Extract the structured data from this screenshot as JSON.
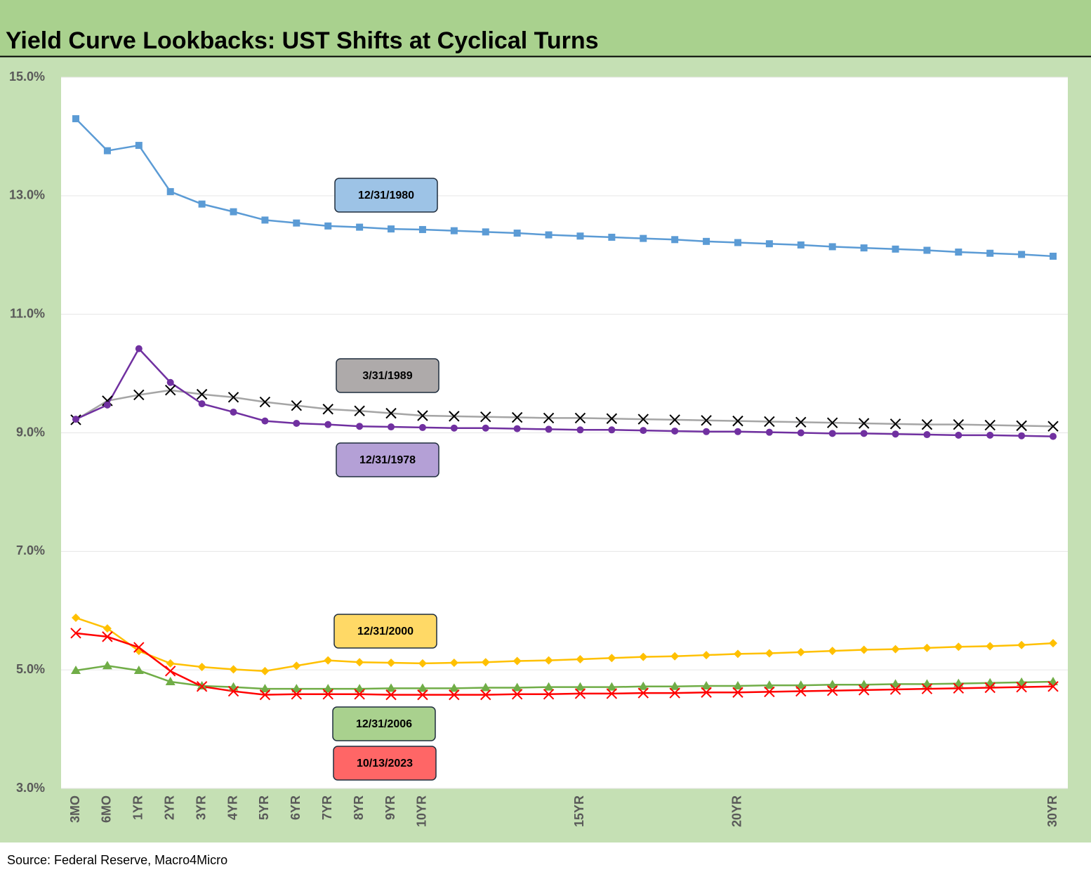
{
  "chart_data": {
    "type": "line",
    "title": "Yield Curve Lookbacks: UST Shifts at Cyclical Turns",
    "source": "Source: Federal Reserve, Macro4Micro",
    "categories": [
      "3MO",
      "6MO",
      "1YR",
      "2YR",
      "3YR",
      "4YR",
      "5YR",
      "6YR",
      "7YR",
      "8YR",
      "9YR",
      "10YR",
      null,
      null,
      null,
      null,
      "15YR",
      null,
      null,
      null,
      null,
      "20YR",
      null,
      null,
      null,
      null,
      null,
      null,
      null,
      null,
      null,
      "30YR"
    ],
    "ylim": [
      3,
      15
    ],
    "yticks": [
      {
        "value": 3,
        "label": "3.0%"
      },
      {
        "value": 5,
        "label": "5.0%"
      },
      {
        "value": 7,
        "label": "7.0%"
      },
      {
        "value": 9,
        "label": "9.0%"
      },
      {
        "value": 11,
        "label": "11.0%"
      },
      {
        "value": 13,
        "label": "13.0%"
      },
      {
        "value": 15,
        "label": "15.0%"
      }
    ],
    "grid": true,
    "series": [
      {
        "name": "12/31/1980",
        "color": "#5b9bd5",
        "marker": "square",
        "marker_color": "#5b9bd5",
        "label_color": "#9dc3e6",
        "values": [
          14.3,
          13.76,
          13.85,
          13.07,
          12.86,
          12.73,
          12.59,
          12.54,
          12.49,
          12.47,
          12.44,
          12.43,
          12.41,
          12.39,
          12.37,
          12.34,
          12.32,
          12.3,
          12.28,
          12.26,
          12.23,
          12.21,
          12.19,
          12.17,
          12.14,
          12.12,
          12.1,
          12.08,
          12.05,
          12.03,
          12.01,
          11.98
        ]
      },
      {
        "name": "3/31/1989",
        "color": "#a5a5a5",
        "marker": "x",
        "marker_color": "#000000",
        "label_color": "#aeaaaa",
        "values": [
          9.22,
          9.54,
          9.64,
          9.72,
          9.65,
          9.6,
          9.52,
          9.46,
          9.4,
          9.37,
          9.33,
          9.29,
          9.28,
          9.27,
          9.26,
          9.25,
          9.25,
          9.24,
          9.23,
          9.22,
          9.21,
          9.2,
          9.19,
          9.18,
          9.17,
          9.16,
          9.15,
          9.14,
          9.14,
          9.13,
          9.12,
          9.11
        ]
      },
      {
        "name": "12/31/1978",
        "color": "#7030a0",
        "marker": "circle",
        "marker_color": "#7030a0",
        "label_color": "#b4a0d6",
        "values": [
          9.23,
          9.47,
          10.42,
          9.85,
          9.49,
          9.35,
          9.2,
          9.16,
          9.14,
          9.11,
          9.1,
          9.09,
          9.08,
          9.08,
          9.07,
          9.06,
          9.05,
          9.05,
          9.04,
          9.03,
          9.02,
          9.02,
          9.01,
          9.0,
          8.99,
          8.99,
          8.98,
          8.97,
          8.96,
          8.96,
          8.95,
          8.94
        ]
      },
      {
        "name": "12/31/2000",
        "color": "#ffc000",
        "marker": "diamond",
        "marker_color": "#ffc000",
        "label_color": "#ffd966",
        "values": [
          5.88,
          5.7,
          5.32,
          5.11,
          5.05,
          5.01,
          4.98,
          5.07,
          5.16,
          5.13,
          5.12,
          5.11,
          5.12,
          5.13,
          5.15,
          5.16,
          5.18,
          5.2,
          5.22,
          5.23,
          5.25,
          5.27,
          5.28,
          5.3,
          5.32,
          5.34,
          5.35,
          5.37,
          5.39,
          5.4,
          5.42,
          5.45
        ]
      },
      {
        "name": "12/31/2006",
        "color": "#70ad47",
        "marker": "triangle",
        "marker_color": "#70ad47",
        "label_color": "#a9d18e",
        "values": [
          4.99,
          5.07,
          4.99,
          4.8,
          4.73,
          4.71,
          4.68,
          4.68,
          4.68,
          4.68,
          4.69,
          4.69,
          4.69,
          4.7,
          4.7,
          4.71,
          4.71,
          4.71,
          4.72,
          4.72,
          4.73,
          4.73,
          4.74,
          4.74,
          4.75,
          4.75,
          4.76,
          4.76,
          4.77,
          4.78,
          4.79,
          4.8
        ]
      },
      {
        "name": "10/13/2023",
        "color": "#ff0000",
        "marker": "x",
        "marker_color": "#ff0000",
        "label_color": "#ff6666",
        "values": [
          5.62,
          5.56,
          5.38,
          4.98,
          4.72,
          4.64,
          4.58,
          4.59,
          4.59,
          4.59,
          4.58,
          4.58,
          4.58,
          4.58,
          4.59,
          4.59,
          4.6,
          4.6,
          4.61,
          4.61,
          4.62,
          4.62,
          4.63,
          4.64,
          4.65,
          4.66,
          4.67,
          4.68,
          4.69,
          4.7,
          4.71,
          4.72
        ]
      }
    ]
  }
}
